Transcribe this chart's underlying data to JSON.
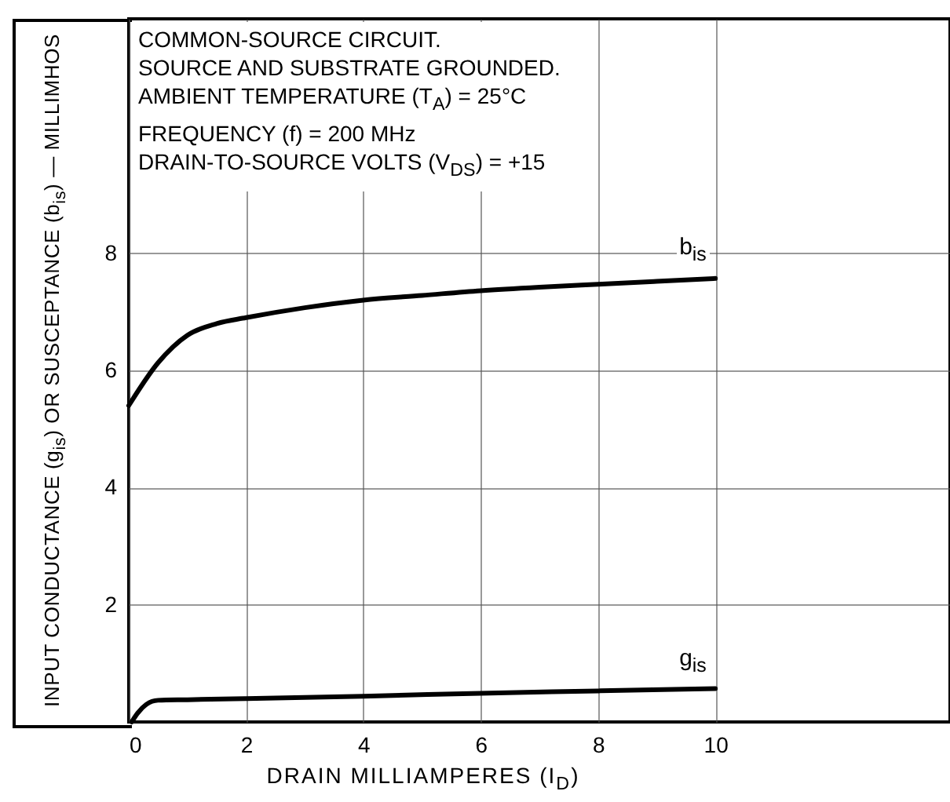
{
  "chart_data": {
    "type": "line",
    "xlabel": "DRAIN MILLIAMPERES (I$_{D}$)",
    "ylabel": "INPUT CONDUCTANCE (g$_{is}$) OR SUSCEPTANCE (b$_{is}$) — MILLIMHOS",
    "annotations": [
      "COMMON-SOURCE CIRCUIT.",
      "SOURCE AND SUBSTRATE GROUNDED.",
      "AMBIENT TEMPERATURE (T$_{A}$) = 25°C",
      "FREQUENCY (f) = 200 MHz",
      "DRAIN-TO-SOURCE VOLTS (V$_{DS}$) = +15"
    ],
    "series": [
      {
        "name": "b$_{is}$",
        "color": "#000000",
        "x": [
          0,
          0.5,
          1,
          1.5,
          2,
          3,
          4,
          5,
          6,
          7,
          8,
          9,
          10
        ],
        "values": [
          5.4,
          6.13,
          6.6,
          6.8,
          6.9,
          7.07,
          7.2,
          7.28,
          7.36,
          7.42,
          7.47,
          7.52,
          7.57
        ]
      },
      {
        "name": "g$_{is}$",
        "color": "#000000",
        "x": [
          0.05,
          0.15,
          0.3,
          0.5,
          1,
          2,
          4,
          6,
          8,
          10
        ],
        "values": [
          0,
          0.15,
          0.3,
          0.37,
          0.38,
          0.4,
          0.44,
          0.49,
          0.53,
          0.57
        ]
      }
    ],
    "xlim": [
      0,
      14
    ],
    "xticks": [
      0,
      2,
      4,
      6,
      8,
      10
    ],
    "ylim": [
      0,
      12
    ],
    "yticks": [
      2,
      4,
      6,
      8
    ],
    "grid": true,
    "line_style": "solid",
    "marker": "none"
  }
}
